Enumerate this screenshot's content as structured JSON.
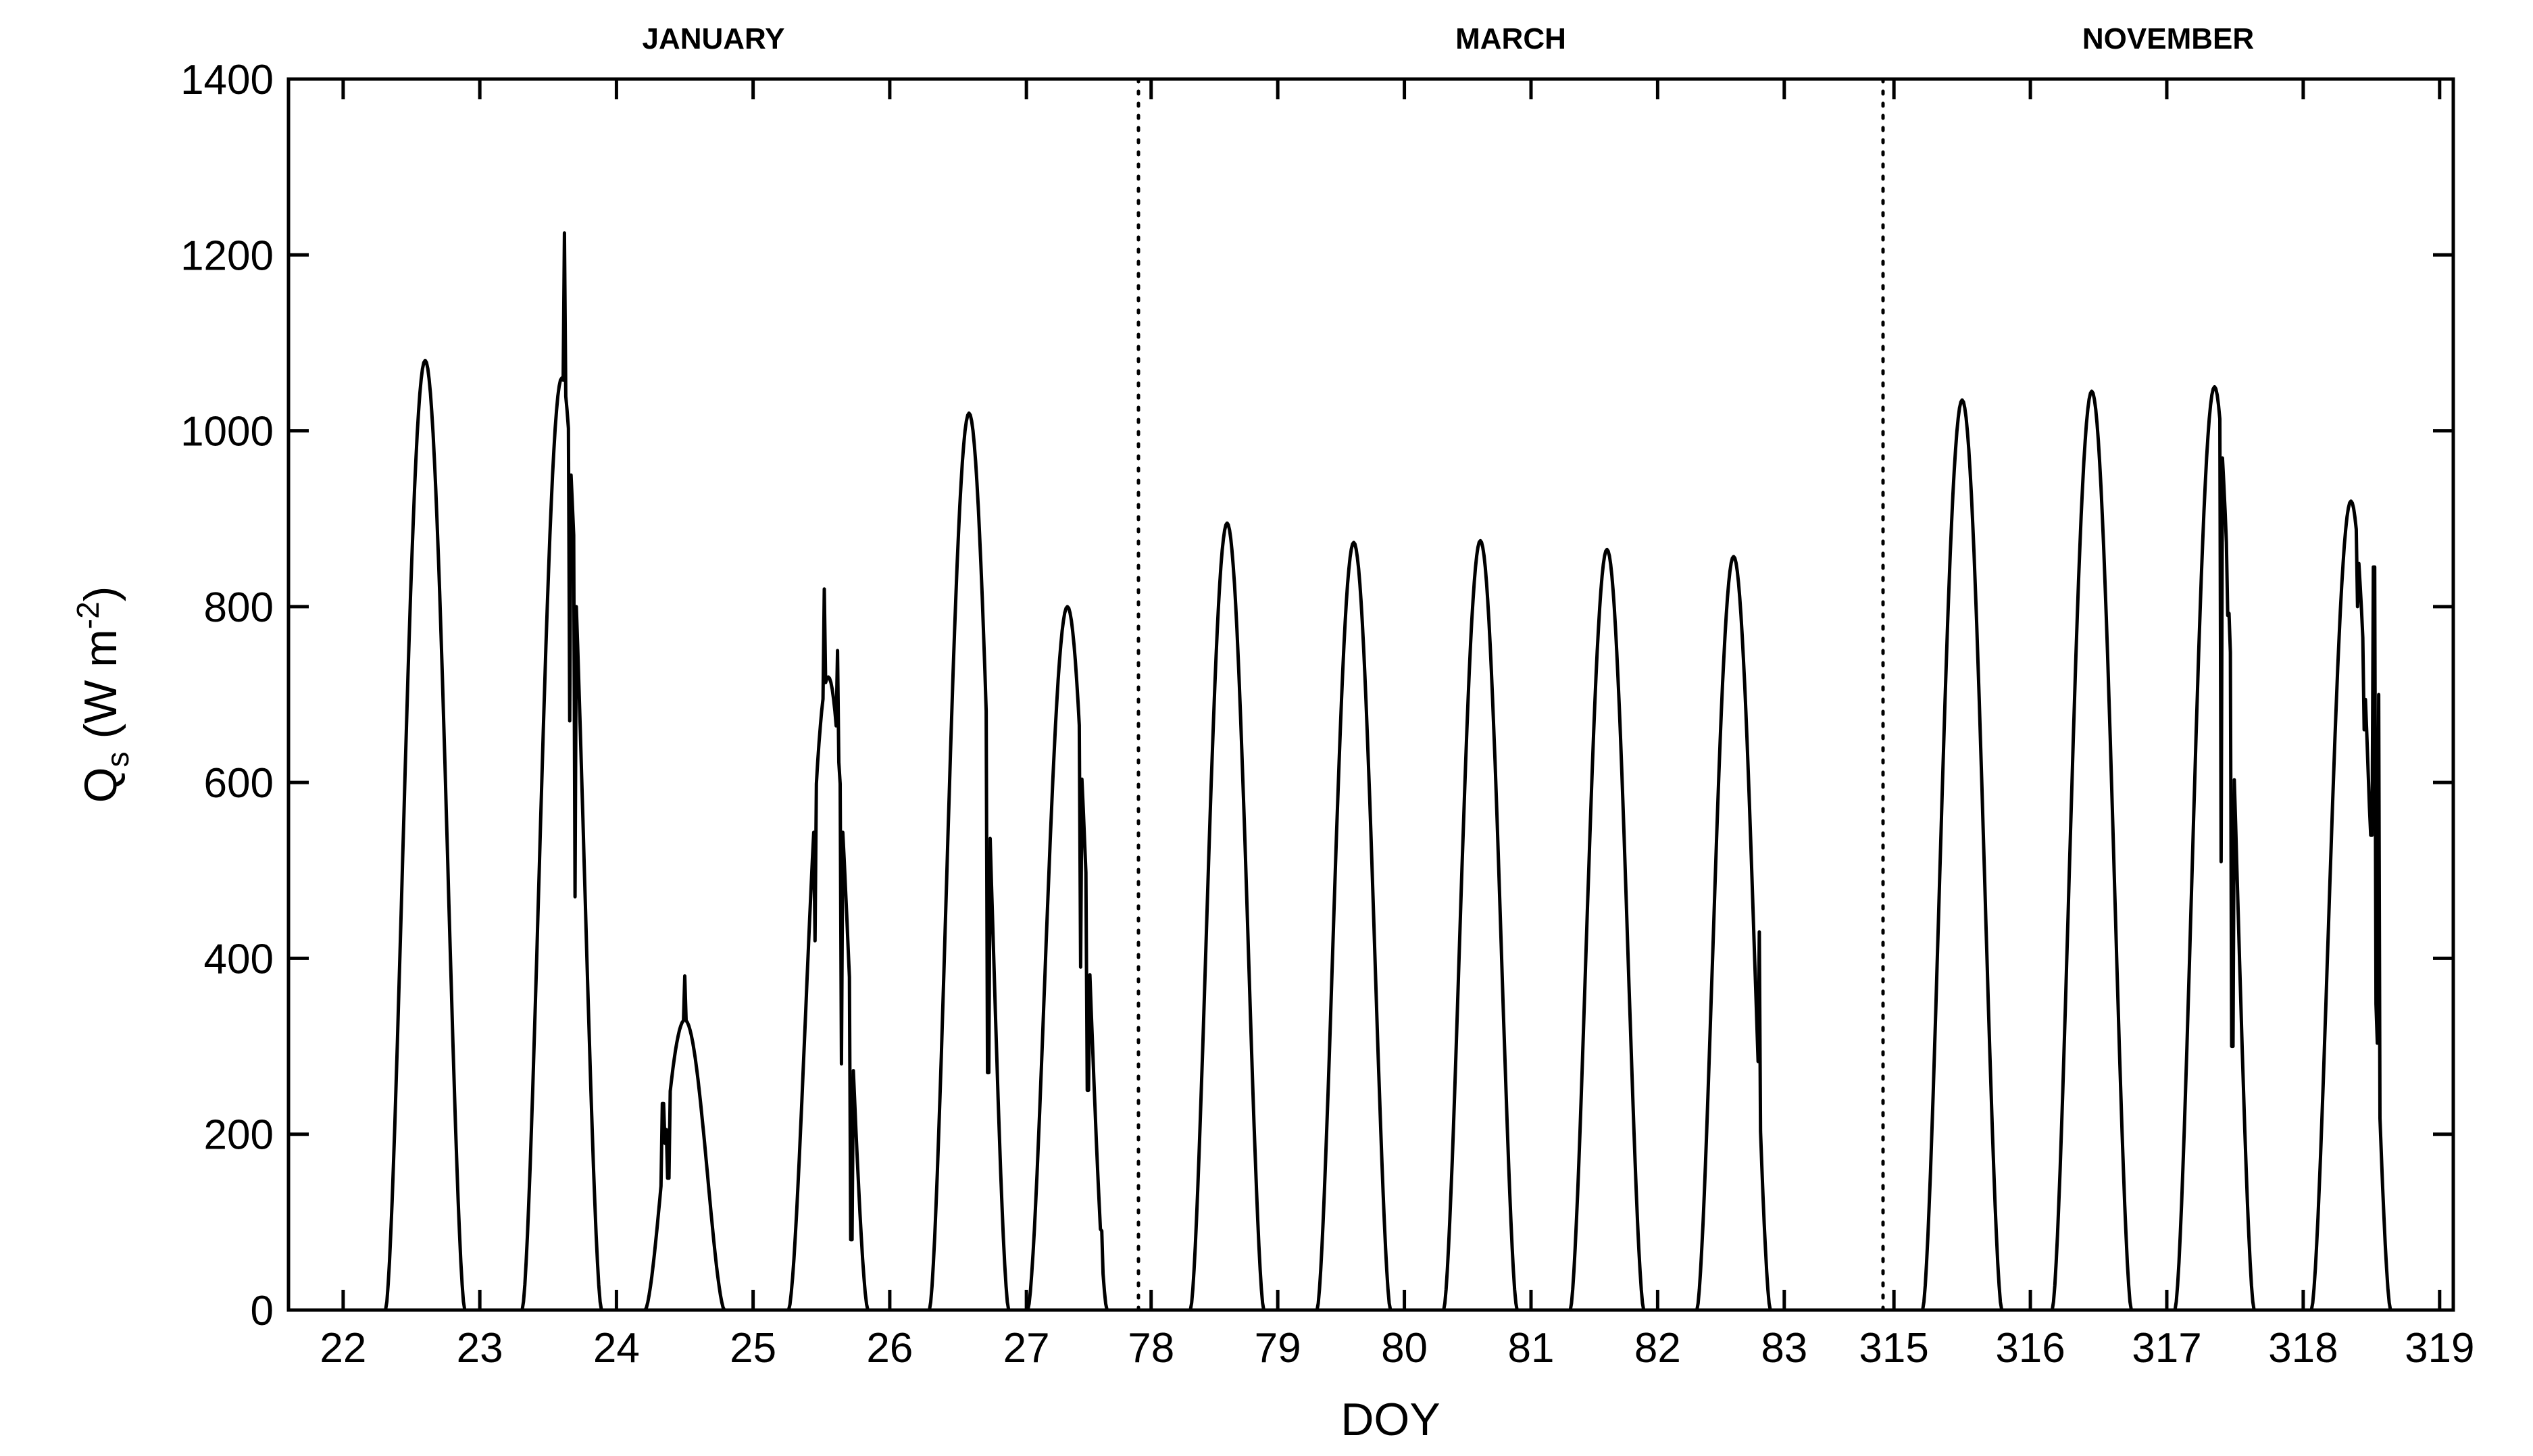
{
  "chart_data": {
    "type": "line",
    "title": "",
    "xlabel": "DOY",
    "ylabel": "Q",
    "ylabel_sub": "s",
    "ylabel_units_prefix": " (W m",
    "ylabel_units_exp": "-2",
    "ylabel_units_suffix": ")",
    "ylim": [
      0,
      1400
    ],
    "yticks": [
      0,
      200,
      400,
      600,
      800,
      1000,
      1200,
      1400
    ],
    "grid": false,
    "line_color": "#000000",
    "panels": [
      {
        "month": "JANUARY",
        "xlim": [
          21.6,
          27.82
        ],
        "xticks": [
          22,
          23,
          24,
          25,
          26,
          27
        ],
        "days": [
          {
            "peak_doy": 22.6,
            "peak": 1080,
            "spikes": []
          },
          {
            "peak_doy": 23.6,
            "peak": 1060,
            "spikes": [
              {
                "doy": 23.62,
                "value": 1225
              },
              {
                "doy": 23.66,
                "value": 670
              },
              {
                "doy": 23.7,
                "value": 470
              }
            ]
          },
          {
            "peak_doy": 24.5,
            "peak": 330,
            "spikes": [
              {
                "doy": 24.34,
                "value": 235
              },
              {
                "doy": 24.38,
                "value": 150
              },
              {
                "doy": 24.5,
                "value": 380
              }
            ]
          },
          {
            "peak_doy": 25.55,
            "peak": 720,
            "spikes": [
              {
                "doy": 25.45,
                "value": 420
              },
              {
                "doy": 25.52,
                "value": 820
              },
              {
                "doy": 25.62,
                "value": 750
              },
              {
                "doy": 25.65,
                "value": 280
              },
              {
                "doy": 25.72,
                "value": 80
              }
            ]
          },
          {
            "peak_doy": 26.58,
            "peak": 1020,
            "spikes": [
              {
                "doy": 26.72,
                "value": 270
              }
            ]
          },
          {
            "peak_doy": 27.3,
            "peak": 800,
            "spikes": [
              {
                "doy": 27.4,
                "value": 390
              },
              {
                "doy": 27.45,
                "value": 250
              },
              {
                "doy": 27.55,
                "value": 90
              },
              {
                "doy": 27.6,
                "value": 60
              }
            ]
          }
        ]
      },
      {
        "month": "MARCH",
        "xlim": [
          77.9,
          83.78
        ],
        "xticks": [
          78,
          79,
          80,
          81,
          82,
          83
        ],
        "days": [
          {
            "peak_doy": 78.6,
            "peak": 895,
            "spikes": []
          },
          {
            "peak_doy": 79.6,
            "peak": 873,
            "spikes": []
          },
          {
            "peak_doy": 80.6,
            "peak": 875,
            "spikes": []
          },
          {
            "peak_doy": 81.6,
            "peak": 865,
            "spikes": []
          },
          {
            "peak_doy": 82.6,
            "peak": 857,
            "spikes": [
              {
                "doy": 82.8,
                "value": 430
              }
            ]
          }
        ]
      },
      {
        "month": "NOVEMBER",
        "xlim": [
          314.92,
          319.1
        ],
        "xticks": [
          315,
          316,
          317,
          318,
          319
        ],
        "days": [
          {
            "peak_doy": 315.5,
            "peak": 1035,
            "spikes": []
          },
          {
            "peak_doy": 316.45,
            "peak": 1045,
            "spikes": []
          },
          {
            "peak_doy": 317.35,
            "peak": 1050,
            "spikes": [
              {
                "doy": 317.4,
                "value": 510
              },
              {
                "doy": 317.45,
                "value": 790
              },
              {
                "doy": 317.48,
                "value": 300
              }
            ]
          },
          {
            "peak_doy": 318.35,
            "peak": 920,
            "spikes": [
              {
                "doy": 318.4,
                "value": 800
              },
              {
                "doy": 318.45,
                "value": 660
              },
              {
                "doy": 318.5,
                "value": 540
              },
              {
                "doy": 318.52,
                "value": 845
              },
              {
                "doy": 318.55,
                "value": 700
              }
            ]
          }
        ]
      }
    ]
  }
}
